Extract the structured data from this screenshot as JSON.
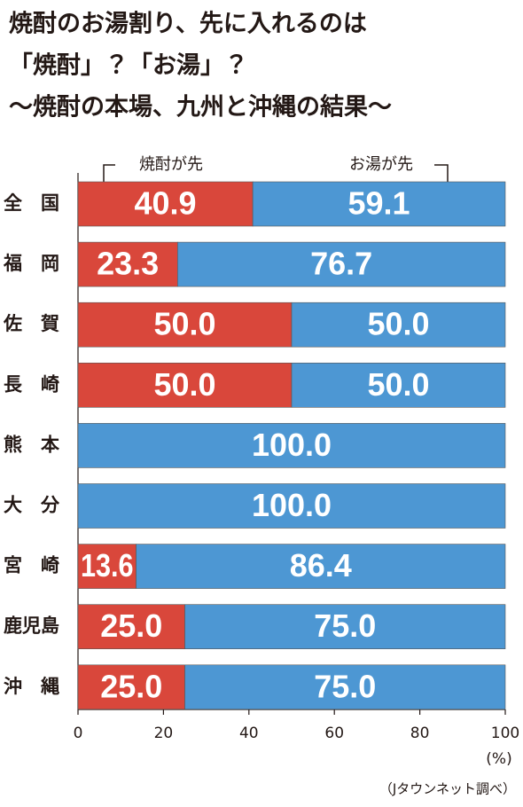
{
  "chart_data": {
    "type": "stacked-bar-horizontal",
    "title": [
      "焼酎のお湯割り、先に入れるのは",
      "「焼酎」？「お湯」？",
      "〜焼酎の本場、九州と沖縄の結果〜"
    ],
    "categories": [
      "全　国",
      "福　岡",
      "佐　賀",
      "長　崎",
      "熊　本",
      "大　分",
      "宮　崎",
      "鹿児島",
      "沖　縄"
    ],
    "series": [
      {
        "name": "焼酎が先",
        "color": "#d9473b",
        "values": [
          40.9,
          23.3,
          50.0,
          50.0,
          0,
          0,
          13.6,
          25.0,
          25.0
        ],
        "value_labels": [
          "40.9",
          "23.3",
          "50.0",
          "50.0",
          null,
          null,
          "13.6",
          "25.0",
          "25.0"
        ]
      },
      {
        "name": "お湯が先",
        "color": "#4d97d3",
        "values": [
          59.1,
          76.7,
          50.0,
          50.0,
          100.0,
          100.0,
          86.4,
          75.0,
          75.0
        ],
        "value_labels": [
          "59.1",
          "76.7",
          "50.0",
          "50.0",
          "100.0",
          "100.0",
          "86.4",
          "75.0",
          "75.0"
        ]
      }
    ],
    "xlim": [
      0,
      100
    ],
    "xticks": [
      0,
      20,
      40,
      60,
      80,
      100
    ],
    "x_unit": "(%)",
    "source": "（Jタウンネット調べ）"
  }
}
